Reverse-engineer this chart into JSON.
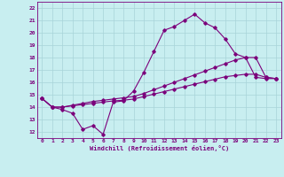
{
  "xlabel": "Windchill (Refroidissement éolien,°C)",
  "bg_color": "#c8eef0",
  "line_color": "#7b007b",
  "grid_color": "#a8d4d8",
  "xlim": [
    -0.5,
    23.5
  ],
  "ylim": [
    11.5,
    22.5
  ],
  "xticks": [
    0,
    1,
    2,
    3,
    4,
    5,
    6,
    7,
    8,
    9,
    10,
    11,
    12,
    13,
    14,
    15,
    16,
    17,
    18,
    19,
    20,
    21,
    22,
    23
  ],
  "yticks": [
    12,
    13,
    14,
    15,
    16,
    17,
    18,
    19,
    20,
    21,
    22
  ],
  "line1_x": [
    0,
    1,
    2,
    3,
    4,
    5,
    6,
    7,
    8,
    9,
    10,
    11,
    12,
    13,
    14,
    15,
    16,
    17,
    18,
    19,
    20,
    21,
    22,
    23
  ],
  "line1_y": [
    14.7,
    14.0,
    13.8,
    13.5,
    12.2,
    12.5,
    11.8,
    14.4,
    14.5,
    15.3,
    16.8,
    18.5,
    20.2,
    20.5,
    21.0,
    21.5,
    20.8,
    20.4,
    19.5,
    18.3,
    18.0,
    16.4,
    16.3,
    16.3
  ],
  "line2_x": [
    0,
    1,
    2,
    3,
    4,
    5,
    6,
    7,
    8,
    9,
    10,
    11,
    12,
    13,
    14,
    15,
    16,
    17,
    18,
    19,
    20,
    21,
    22,
    23
  ],
  "line2_y": [
    14.7,
    14.0,
    14.0,
    14.1,
    14.2,
    14.3,
    14.4,
    14.5,
    14.55,
    14.65,
    14.85,
    15.05,
    15.25,
    15.45,
    15.65,
    15.85,
    16.05,
    16.25,
    16.45,
    16.55,
    16.65,
    16.65,
    16.4,
    16.3
  ],
  "line3_x": [
    0,
    1,
    2,
    3,
    4,
    5,
    6,
    7,
    8,
    9,
    10,
    11,
    12,
    13,
    14,
    15,
    16,
    17,
    18,
    19,
    20,
    21,
    22,
    23
  ],
  "line3_y": [
    14.7,
    14.0,
    14.0,
    14.15,
    14.3,
    14.45,
    14.55,
    14.65,
    14.75,
    14.85,
    15.1,
    15.4,
    15.7,
    16.0,
    16.3,
    16.6,
    16.9,
    17.2,
    17.5,
    17.8,
    18.0,
    18.0,
    16.4,
    16.3
  ]
}
